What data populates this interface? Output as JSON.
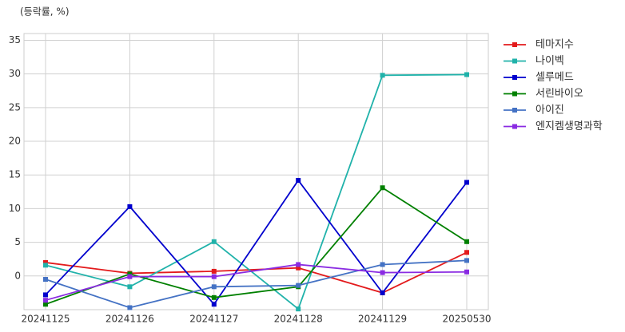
{
  "chart_data": {
    "type": "line",
    "title": "(등락률, %)",
    "categories": [
      "20241125",
      "20241126",
      "20241127",
      "20241128",
      "20241129",
      "20250530"
    ],
    "series": [
      {
        "name": "테마지수",
        "color": "#e31a1c",
        "values": [
          2.0,
          0.4,
          0.7,
          1.2,
          -2.5,
          3.5
        ]
      },
      {
        "name": "나이벡",
        "color": "#20b2aa",
        "values": [
          1.6,
          -1.6,
          5.1,
          -4.9,
          29.8,
          29.9
        ]
      },
      {
        "name": "셀루메드",
        "color": "#0000cd",
        "values": [
          -2.8,
          10.3,
          -4.2,
          14.2,
          -2.5,
          13.9
        ]
      },
      {
        "name": "서린바이오",
        "color": "#008000",
        "values": [
          -4.2,
          0.3,
          -3.2,
          -1.6,
          13.1,
          5.1
        ]
      },
      {
        "name": "아이진",
        "color": "#4472c4",
        "values": [
          -0.5,
          -4.7,
          -1.6,
          -1.4,
          1.7,
          2.3
        ]
      },
      {
        "name": "엔지켐생명과학",
        "color": "#8a2be2",
        "values": [
          -3.6,
          -0.1,
          -0.1,
          1.7,
          0.5,
          0.6
        ]
      }
    ],
    "ylim": [
      -5,
      36
    ],
    "yticks": [
      0,
      5,
      10,
      15,
      20,
      25,
      30,
      35
    ],
    "grid": true
  }
}
